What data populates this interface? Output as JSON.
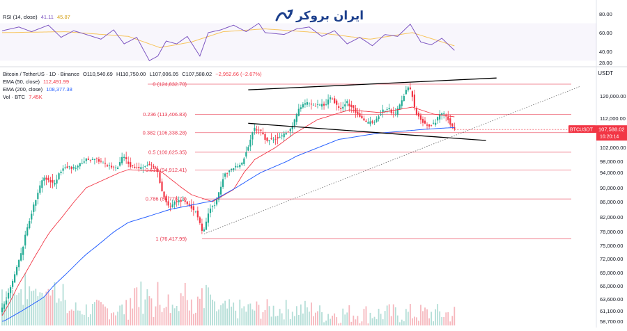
{
  "colors": {
    "bull": "#22ab94",
    "bear": "#f23645",
    "ema50": "#f23645",
    "ema200": "#2962ff",
    "rsi": "#7e57c2",
    "rsi_ma": "#f7c55f",
    "fib": "#e8334a",
    "trend": "#000000",
    "vol_bull": "#b4ded7",
    "vol_bear": "#f6b7bd",
    "price_tag": "#f23645",
    "logo": "#1c3f8c"
  },
  "logo": {
    "text": "ایران بروکر",
    "icon": "chart-swoosh-icon"
  },
  "rsi_panel": {
    "label": "RSI (14, close)",
    "value1": "41.11",
    "value2": "45.87",
    "ticks": [
      "80.00",
      "60.00",
      "40.00",
      "28.00"
    ]
  },
  "header": {
    "symbol": "Bitcoin / TetherUS · 1D · Binance",
    "open": "O110,540.69",
    "high": "H110,750.00",
    "low": "L107,006.05",
    "close": "C107,588.02",
    "change": "−2,952.66 (−2.67%)",
    "ema50_label": "EMA (50, close)",
    "ema50_value": "112,491.99",
    "ema200_label": "EMA (200, close)",
    "ema200_value": "108,377.38",
    "vol_label": "Vol · BTC",
    "vol_value": "7.45K"
  },
  "price_axis": {
    "currency": "USDT",
    "ticks": [
      "120,000.00",
      "112,000.00",
      "106,000.00",
      "102,000.00",
      "98,000.00",
      "94,000.00",
      "90,000.00",
      "86,000.00",
      "82,000.00",
      "78,000.00",
      "75,000.00",
      "72,000.00",
      "69,000.00",
      "66,000.00",
      "63,600.00",
      "61,100.00",
      "58,700.00"
    ],
    "last_symbol": "BTCUSDT",
    "last_price": "107,588.02",
    "countdown": "16:20:14"
  },
  "fib_levels": [
    {
      "label": "0 (124,832.70)"
    },
    {
      "label": "0.236 (113,406.83)"
    },
    {
      "label": "0.382 (106,338.28)"
    },
    {
      "label": "0.5 (100,625.35)"
    },
    {
      "label": "0.618 (94,912.41)"
    },
    {
      "label": "0.786 (86,778.73)"
    },
    {
      "label": "1 (76,417.99)"
    }
  ],
  "chart_data": {
    "type": "candlestick",
    "fibonacci_levels": [
      {
        "ratio": 0,
        "price": 124832.7
      },
      {
        "ratio": 0.236,
        "price": 113406.83
      },
      {
        "ratio": 0.382,
        "price": 106338.28
      },
      {
        "ratio": 0.5,
        "price": 100625.35
      },
      {
        "ratio": 0.618,
        "price": 94912.41
      },
      {
        "ratio": 0.786,
        "price": 86778.73
      },
      {
        "ratio": 1,
        "price": 76417.99
      }
    ],
    "price_path": [
      [
        0,
        61000
      ],
      [
        5,
        66000
      ],
      [
        10,
        74000
      ],
      [
        15,
        84000
      ],
      [
        20,
        93000
      ],
      [
        25,
        91000
      ],
      [
        30,
        96000
      ],
      [
        35,
        95500
      ],
      [
        40,
        98500
      ],
      [
        45,
        99000
      ],
      [
        50,
        96500
      ],
      [
        55,
        95500
      ],
      [
        58,
        99500
      ],
      [
        62,
        96000
      ],
      [
        66,
        95500
      ],
      [
        70,
        97000
      ],
      [
        74,
        95000
      ],
      [
        77,
        88000
      ],
      [
        80,
        84500
      ],
      [
        84,
        86500
      ],
      [
        88,
        86000
      ],
      [
        93,
        83000
      ],
      [
        96,
        77500
      ],
      [
        99,
        84000
      ],
      [
        102,
        85500
      ],
      [
        106,
        93500
      ],
      [
        110,
        95500
      ],
      [
        114,
        96500
      ],
      [
        118,
        103500
      ],
      [
        120,
        108000
      ],
      [
        123,
        107500
      ],
      [
        126,
        104000
      ],
      [
        130,
        104500
      ],
      [
        134,
        105500
      ],
      [
        138,
        108000
      ],
      [
        142,
        116000
      ],
      [
        146,
        117500
      ],
      [
        150,
        116500
      ],
      [
        154,
        117000
      ],
      [
        157,
        119500
      ],
      [
        161,
        115000
      ],
      [
        164,
        118000
      ],
      [
        168,
        115000
      ],
      [
        171,
        112000
      ],
      [
        174,
        110000
      ],
      [
        178,
        111000
      ],
      [
        181,
        114500
      ],
      [
        184,
        115500
      ],
      [
        187,
        113000
      ],
      [
        190,
        117000
      ],
      [
        193,
        123500
      ],
      [
        195,
        122000
      ],
      [
        197,
        114000
      ],
      [
        200,
        111000
      ],
      [
        203,
        109000
      ],
      [
        206,
        110000
      ],
      [
        209,
        114000
      ],
      [
        212,
        112500
      ],
      [
        215,
        107588
      ]
    ],
    "ema50": [
      [
        0,
        60000
      ],
      [
        20,
        76000
      ],
      [
        40,
        90000
      ],
      [
        60,
        95000
      ],
      [
        75,
        94500
      ],
      [
        90,
        88000
      ],
      [
        100,
        86000
      ],
      [
        110,
        89500
      ],
      [
        120,
        98500
      ],
      [
        130,
        102000
      ],
      [
        140,
        106500
      ],
      [
        150,
        111500
      ],
      [
        165,
        115000
      ],
      [
        180,
        114000
      ],
      [
        195,
        116000
      ],
      [
        205,
        113500
      ],
      [
        215,
        112492
      ]
    ],
    "ema200": [
      [
        0,
        58500
      ],
      [
        20,
        64000
      ],
      [
        40,
        73000
      ],
      [
        60,
        80500
      ],
      [
        80,
        84000
      ],
      [
        100,
        86200
      ],
      [
        120,
        93000
      ],
      [
        140,
        99500
      ],
      [
        160,
        104300
      ],
      [
        180,
        106200
      ],
      [
        200,
        107600
      ],
      [
        215,
        108377
      ]
    ],
    "rsi": [
      [
        0,
        62
      ],
      [
        8,
        66
      ],
      [
        14,
        61
      ],
      [
        22,
        68
      ],
      [
        28,
        55
      ],
      [
        34,
        62
      ],
      [
        40,
        58
      ],
      [
        47,
        53
      ],
      [
        53,
        63
      ],
      [
        58,
        48
      ],
      [
        64,
        55
      ],
      [
        70,
        30
      ],
      [
        74,
        35
      ],
      [
        78,
        51
      ],
      [
        83,
        48
      ],
      [
        88,
        56
      ],
      [
        94,
        35
      ],
      [
        98,
        60
      ],
      [
        104,
        63
      ],
      [
        110,
        68
      ],
      [
        116,
        61
      ],
      [
        122,
        70
      ],
      [
        125,
        60
      ],
      [
        134,
        58
      ],
      [
        140,
        64
      ],
      [
        146,
        66
      ],
      [
        152,
        56
      ],
      [
        158,
        62
      ],
      [
        164,
        48
      ],
      [
        170,
        55
      ],
      [
        176,
        46
      ],
      [
        182,
        58
      ],
      [
        188,
        56
      ],
      [
        194,
        69
      ],
      [
        199,
        50
      ],
      [
        204,
        47
      ],
      [
        209,
        54
      ],
      [
        215,
        41.11
      ]
    ],
    "rsi_ma": [
      [
        0,
        60
      ],
      [
        30,
        61
      ],
      [
        60,
        56
      ],
      [
        75,
        44
      ],
      [
        90,
        50
      ],
      [
        105,
        61
      ],
      [
        125,
        64
      ],
      [
        150,
        60
      ],
      [
        175,
        53
      ],
      [
        195,
        60
      ],
      [
        215,
        45.87
      ]
    ],
    "rsi_range": [
      28,
      80
    ],
    "volume_note": "Vol · BTC 7.45K",
    "trendlines": [
      {
        "from": [
          117,
          122500
        ],
        "to": [
          235,
          127000
        ]
      },
      {
        "from": [
          117,
          110000
        ],
        "to": [
          230,
          104000
        ]
      },
      {
        "from": [
          96,
          77500
        ],
        "to": [
          275,
          124000
        ]
      }
    ]
  }
}
